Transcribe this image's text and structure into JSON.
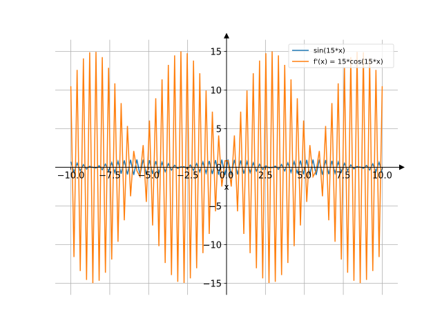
{
  "chart_data": {
    "type": "line",
    "xlabel": "x",
    "ylabel": "",
    "xlim": [
      -11,
      11
    ],
    "ylim": [
      -16.5,
      16.5
    ],
    "grid": true,
    "legend_position": "top-right",
    "x_domain": [
      -10,
      10
    ],
    "n_points": 100,
    "x_ticks": [
      -10.0,
      -7.5,
      -5.0,
      -2.5,
      0.0,
      2.5,
      5.0,
      7.5,
      10.0
    ],
    "x_tick_labels": [
      "−10.0",
      "−7.5",
      "−5.0",
      "−2.5",
      "0.0",
      "2.5",
      "5.0",
      "7.5",
      "10.0"
    ],
    "y_ticks": [
      -15,
      -10,
      -5,
      0,
      5,
      10,
      15
    ],
    "y_tick_labels": [
      "−15",
      "−10",
      "−5",
      "0",
      "5",
      "10",
      "15"
    ],
    "series": [
      {
        "name": "sin(15*x)",
        "function": "sin",
        "amplitude": 1,
        "frequency": 15,
        "color": "#1f77b4"
      },
      {
        "name": "f'(x) = 15*cos(15*x)",
        "function": "cos",
        "amplitude": 15,
        "frequency": 15,
        "color": "#ff7f0e"
      }
    ]
  }
}
